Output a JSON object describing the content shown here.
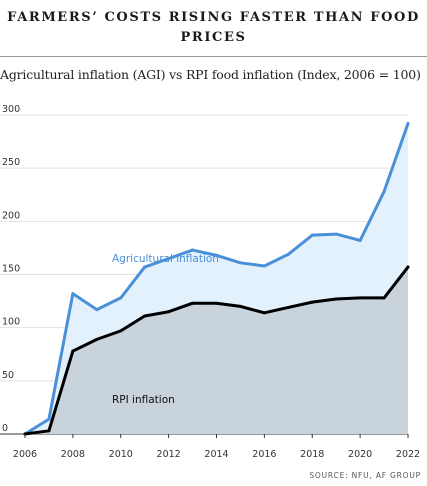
{
  "header": {
    "title_line1": "FARMERS’ COSTS RISING FASTER THAN FOOD",
    "title_line2": "PRICES",
    "subtitle": "Agricultural inflation (AGI) vs RPI food inflation (Index, 2006 = 100)"
  },
  "footer": {
    "source": "SOURCE: NFU, AF GROUP"
  },
  "chart_data": {
    "type": "area",
    "title": "FARMERS’ COSTS RISING FASTER THAN FOOD PRICES",
    "subtitle": "Agricultural inflation (AGI) vs RPI food inflation (Index, 2006 = 100)",
    "xlabel": "",
    "ylabel": "",
    "x": [
      2006,
      2007,
      2008,
      2009,
      2010,
      2011,
      2012,
      2013,
      2014,
      2015,
      2016,
      2017,
      2018,
      2019,
      2020,
      2021,
      2022
    ],
    "x_ticks": [
      "2006",
      "2008",
      "2010",
      "2012",
      "2014",
      "2016",
      "2018",
      "2020",
      "2022"
    ],
    "y_ticks": [
      "0",
      "50",
      "100",
      "150",
      "200",
      "250",
      "300"
    ],
    "ylim": [
      0,
      300
    ],
    "grid": "horizontal",
    "series": [
      {
        "name": "Agricultural inflation",
        "color": "#4a90d9",
        "fill": "#e3f1fc",
        "values": [
          0,
          14,
          132,
          117,
          128,
          157,
          165,
          173,
          168,
          161,
          158,
          169,
          187,
          188,
          182,
          228,
          292
        ]
      },
      {
        "name": "RPI inflation",
        "color": "#000000",
        "fill": "#c9d3db",
        "values": [
          0,
          3,
          78,
          89,
          97,
          111,
          115,
          123,
          123,
          120,
          114,
          119,
          124,
          127,
          128,
          128,
          157
        ]
      }
    ]
  }
}
